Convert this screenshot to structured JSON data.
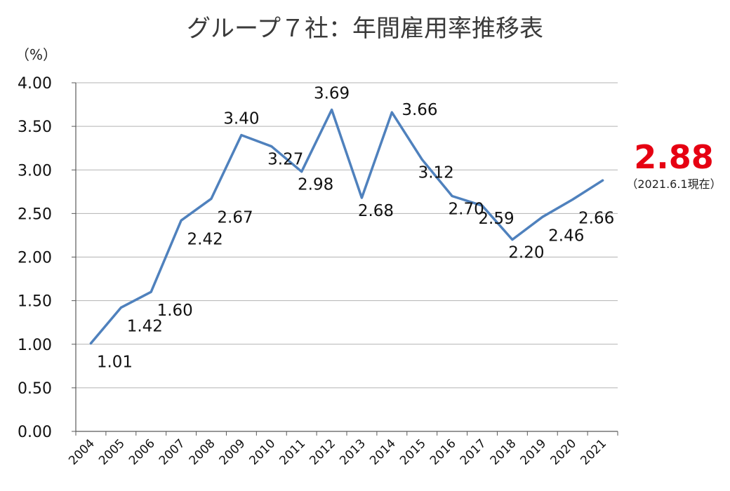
{
  "chart_data": {
    "type": "line",
    "title": "グループ７社：年間雇用率推移表",
    "ylabel": "（%）",
    "xlabel": "",
    "ylim": [
      0,
      4
    ],
    "yticks": [
      "0.00",
      "0.50",
      "1.00",
      "1.50",
      "2.00",
      "2.50",
      "3.00",
      "3.50",
      "4.00"
    ],
    "categories": [
      "2004",
      "2005",
      "2006",
      "2007",
      "2008",
      "2009",
      "2010",
      "2011",
      "2012",
      "2013",
      "2014",
      "2015",
      "2016",
      "2017",
      "2018",
      "2019",
      "2020",
      "2021"
    ],
    "values": [
      1.01,
      1.42,
      1.6,
      2.42,
      2.67,
      3.4,
      3.27,
      2.98,
      3.69,
      2.68,
      3.66,
      3.12,
      2.7,
      2.59,
      2.2,
      2.46,
      2.66,
      2.88
    ],
    "labels": [
      "1.01",
      "1.42",
      "1.60",
      "2.42",
      "2.67",
      "3.40",
      "3.27",
      "2.98",
      "3.69",
      "2.68",
      "3.66",
      "3.12",
      "2.70",
      "2.59",
      "2.20",
      "2.46",
      "2.66"
    ],
    "grid": true,
    "line_color": "#4f81bd",
    "highlight": {
      "value": "2.88",
      "note": "（2021.6.1現在）",
      "color": "#e60012"
    }
  }
}
